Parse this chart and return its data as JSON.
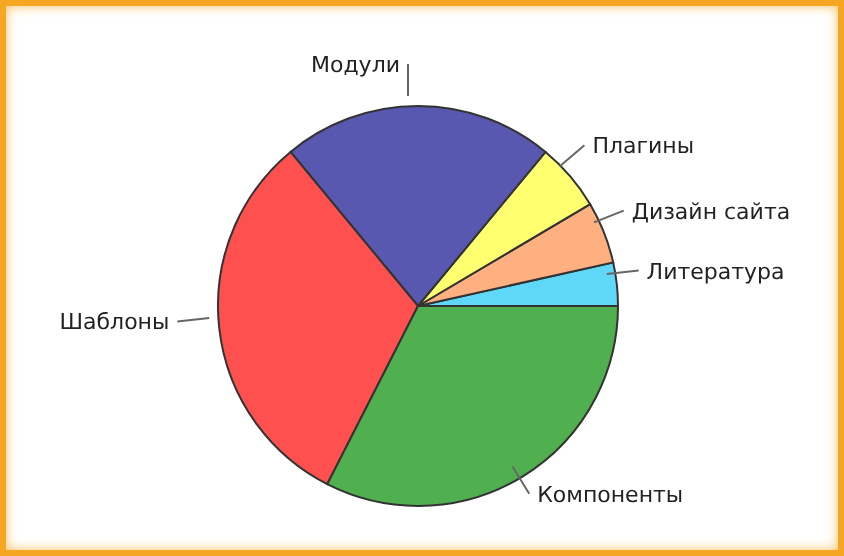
{
  "chart_data": {
    "type": "pie",
    "categories": [
      "Литература",
      "Дизайн сайта",
      "Плагины",
      "Модули",
      "Шаблоны",
      "Компоненты"
    ],
    "values": [
      3.5,
      5,
      5.5,
      22,
      31.5,
      32.5
    ],
    "colors": [
      "#5fd8f8",
      "#ffb080",
      "#ffff70",
      "#5858b0",
      "#ff5050",
      "#50b050"
    ],
    "legend": false
  }
}
